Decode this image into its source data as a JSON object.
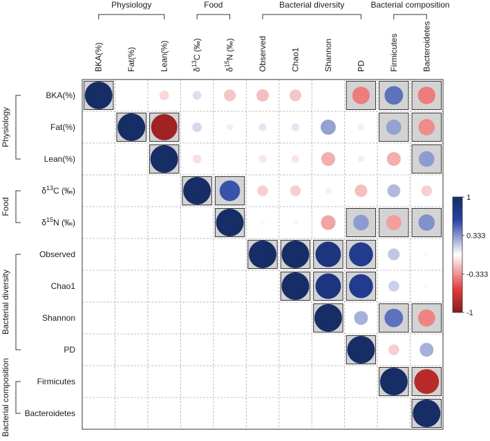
{
  "chart_data": {
    "type": "heatmap",
    "title": "",
    "row_labels": [
      "BKA(%)",
      "Fat(%)",
      "Lean(%)",
      "δ13C (‰)",
      "δ15N (‰)",
      "Observed",
      "Chao1",
      "Shannon",
      "PD",
      "Firmicutes",
      "Bacteroidetes"
    ],
    "col_labels": [
      "BKA(%)",
      "Fat(%)",
      "Lean(%)",
      "δ13C (‰)",
      "δ15N (‰)",
      "Observed",
      "Chao1",
      "Shannon",
      "PD",
      "Firmicutes",
      "Bacteroidetes"
    ],
    "groups": [
      {
        "name": "Physiology",
        "start": 0,
        "end": 2
      },
      {
        "name": "Food",
        "start": 3,
        "end": 4
      },
      {
        "name": "Bacterial diversity",
        "start": 5,
        "end": 8
      },
      {
        "name": "Bacterial composition",
        "start": 9,
        "end": 10
      }
    ],
    "colorbar": {
      "min": -1,
      "max": 1,
      "ticks": [
        "1",
        "0.333",
        "-0.333",
        "-1"
      ]
    },
    "values": [
      [
        1,
        null,
        -0.12,
        0.1,
        -0.18,
        -0.2,
        -0.18,
        null,
        -0.4,
        0.45,
        -0.4
      ],
      [
        null,
        1,
        -0.9,
        0.12,
        0.05,
        0.08,
        0.08,
        0.3,
        0.05,
        0.3,
        -0.35
      ],
      [
        null,
        null,
        1,
        -0.1,
        null,
        -0.08,
        -0.08,
        -0.25,
        0.05,
        -0.25,
        0.32
      ],
      [
        null,
        null,
        null,
        1,
        0.55,
        -0.15,
        -0.15,
        -0.05,
        -0.2,
        0.22,
        -0.15
      ],
      [
        null,
        null,
        null,
        null,
        1,
        0.03,
        0.03,
        -0.28,
        0.32,
        -0.3,
        0.35
      ],
      [
        null,
        null,
        null,
        null,
        null,
        1,
        1,
        0.85,
        0.75,
        0.18,
        0.02
      ],
      [
        null,
        null,
        null,
        null,
        null,
        null,
        1,
        0.85,
        0.75,
        0.15,
        0.02
      ],
      [
        null,
        null,
        null,
        null,
        null,
        null,
        null,
        1,
        0.25,
        0.45,
        -0.38
      ],
      [
        null,
        null,
        null,
        null,
        null,
        null,
        null,
        null,
        1,
        -0.15,
        0.25
      ],
      [
        null,
        null,
        null,
        null,
        null,
        null,
        null,
        null,
        null,
        1,
        -0.8
      ],
      [
        null,
        null,
        null,
        null,
        null,
        null,
        null,
        null,
        null,
        null,
        1
      ]
    ],
    "significant": [
      [
        true,
        false,
        false,
        false,
        false,
        false,
        false,
        false,
        true,
        true,
        true
      ],
      [
        false,
        true,
        true,
        false,
        false,
        false,
        false,
        false,
        false,
        true,
        true
      ],
      [
        false,
        false,
        true,
        false,
        false,
        false,
        false,
        false,
        false,
        false,
        true
      ],
      [
        false,
        false,
        false,
        true,
        true,
        false,
        false,
        false,
        false,
        false,
        false
      ],
      [
        false,
        false,
        false,
        false,
        true,
        false,
        false,
        false,
        true,
        true,
        true
      ],
      [
        false,
        false,
        false,
        false,
        false,
        true,
        true,
        true,
        true,
        false,
        false
      ],
      [
        false,
        false,
        false,
        false,
        false,
        false,
        true,
        true,
        true,
        false,
        false
      ],
      [
        false,
        false,
        false,
        false,
        false,
        false,
        false,
        true,
        false,
        true,
        true
      ],
      [
        false,
        false,
        false,
        false,
        false,
        false,
        false,
        false,
        true,
        false,
        false
      ],
      [
        false,
        false,
        false,
        false,
        false,
        false,
        false,
        false,
        false,
        true,
        true
      ],
      [
        false,
        false,
        false,
        false,
        false,
        false,
        false,
        false,
        false,
        false,
        true
      ]
    ],
    "colors": {
      "strong_positive": "#162d66",
      "positive": "#2743a6",
      "neutral": "#ffffff",
      "negative": "#e63a3a",
      "strong_negative": "#8a1a1a",
      "significant_bg": "#d3d3d3",
      "grid": "#aaaaaa"
    }
  }
}
